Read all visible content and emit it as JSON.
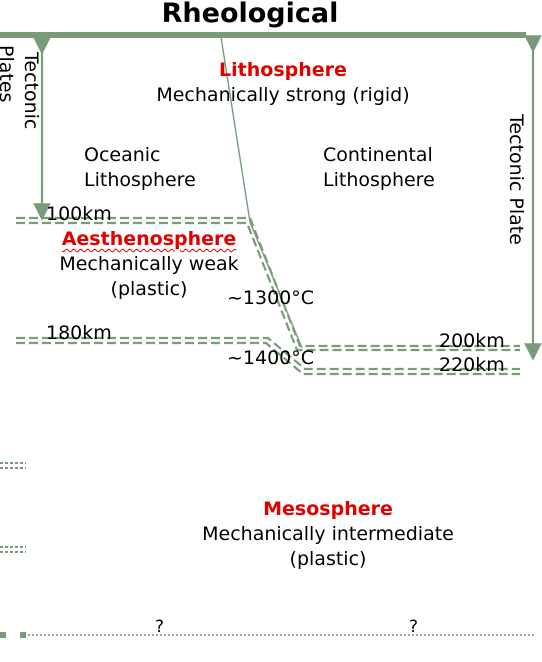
{
  "title": "Rheological",
  "lithosphere": {
    "heading": "Lithosphere",
    "subtitle": "Mechanically strong (rigid)"
  },
  "oceanic_label": [
    "Oceanic",
    "Lithosphere"
  ],
  "continental_label": [
    "Continental",
    "Lithosphere"
  ],
  "aesthenosphere": {
    "heading": "Aesthenosphere",
    "line1": "Mechanically weak",
    "line2": "(plastic)"
  },
  "mesosphere": {
    "heading": "Mesosphere",
    "line1": "Mechanically intermediate",
    "line2": "(plastic)"
  },
  "depths": {
    "d100": "100km",
    "d180": "180km",
    "d200": "200km",
    "d220": "220km"
  },
  "temps": {
    "t1300": "~1300°C",
    "t1400": "~1400°C"
  },
  "left_vertical": {
    "tectonic": "Tectonic",
    "plates": "Plates"
  },
  "right_vertical": "Tectonic Plate",
  "unknown_marks": [
    "?",
    "?"
  ],
  "colors": {
    "line": "#7a9b7a",
    "accent": "#e00000"
  }
}
